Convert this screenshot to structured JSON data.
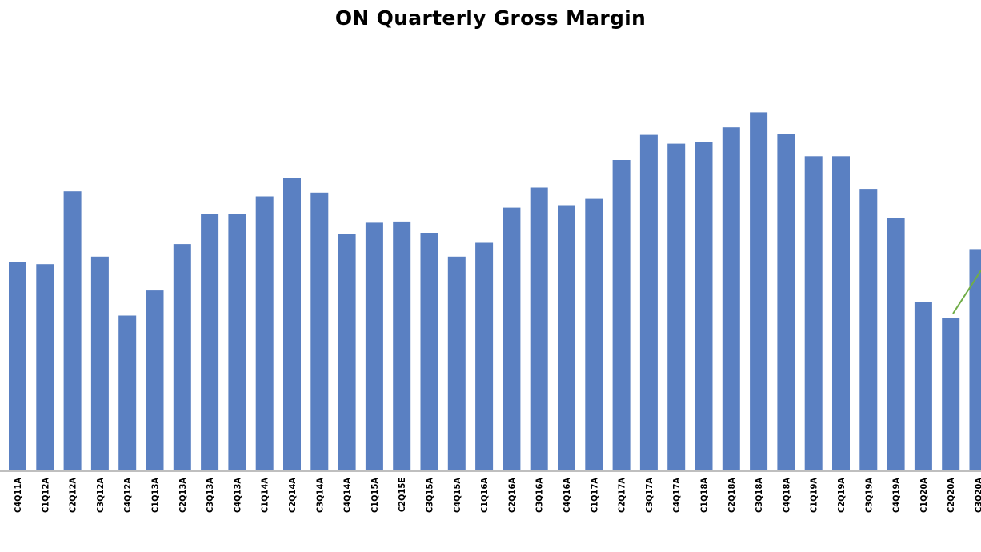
{
  "chart_data": {
    "type": "bar",
    "title": "ON Quarterly Gross Margin",
    "xlabel": "",
    "ylabel": "",
    "grid": false,
    "legend": "none",
    "bar_color": "#5A80C2",
    "axis_color": "#BFBFBF",
    "annotation_color": "#70AD47",
    "categories": [
      "C4Q11A",
      "C1Q12A",
      "C2Q12A",
      "C3Q12A",
      "C4Q12A",
      "C1Q13A",
      "C2Q13A",
      "C3Q13A",
      "C4Q13A",
      "C1Q14A",
      "C2Q14A",
      "C3Q14A",
      "C4Q14A",
      "C1Q15A",
      "C2Q15E",
      "C3Q15A",
      "C4Q15A",
      "C1Q16A",
      "C2Q16A",
      "C3Q16A",
      "C4Q16A",
      "C1Q17A",
      "C2Q17A",
      "C3Q17A",
      "C4Q17A",
      "C1Q18A",
      "C2Q18A",
      "C3Q18A",
      "C4Q18A",
      "C1Q19A",
      "C2Q19A",
      "C3Q19A",
      "C4Q19A",
      "C1Q20A",
      "C2Q20A",
      "C3Q20A"
    ],
    "values": [
      167,
      165,
      223,
      171,
      124,
      144,
      181,
      205,
      205,
      219,
      234,
      222,
      189,
      198,
      199,
      190,
      171,
      182,
      210,
      226,
      212,
      217,
      248,
      268,
      261,
      262,
      274,
      286,
      269,
      251,
      251,
      225,
      202,
      135,
      122,
      177
    ],
    "ylim": [
      0,
      350
    ]
  }
}
